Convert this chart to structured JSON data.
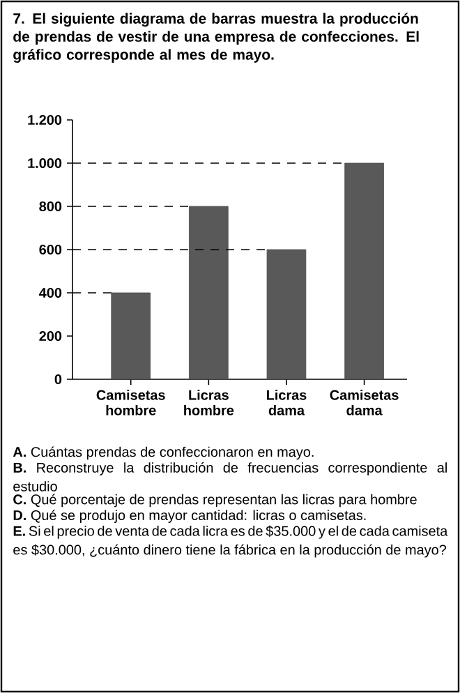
{
  "chart_data": {
    "type": "bar",
    "title": "7. El siguiente diagrama de barras muestra la producción de prendas de vestir de una empresa de confecciones. El gráfico corresponde al mes de mayo.",
    "categories": [
      "Camisetas hombre",
      "Licras hombre",
      "Licras dama",
      "Camisetas dama"
    ],
    "values": [
      400,
      800,
      600,
      1000
    ],
    "color": "#595959",
    "ylim": [
      0,
      1200
    ],
    "yticks": [
      0,
      200,
      400,
      600,
      800,
      {
        "value": 1000,
        "label": "1.000"
      },
      {
        "value": 1200,
        "label": "1.200"
      }
    ],
    "ref_lines": [
      {
        "axis": "y",
        "value": 400,
        "line_style": "dashed"
      },
      {
        "axis": "y",
        "value": 600,
        "line_style": "dashed"
      },
      {
        "axis": "y",
        "value": 800,
        "line_style": "dashed"
      },
      {
        "axis": "y",
        "value": 1000,
        "line_style": "dashed"
      }
    ],
    "annotations": [
      "**A.** Cuántas prendas de confeccionaron en mayo.",
      "**B.** Reconstruye la distribución de frecuencias correspondiente al estudio",
      "**C.** Qué porcentaje de prendas representan las licras para hombre",
      "**D.** Qué se produjo en mayor cantidad: licras o camisetas.",
      "**E.** Si el precio de venta de cada licra es de $35.000 y el de cada camiseta es $30.000, ¿cuánto dinero tiene la fábrica en la producción de mayo?"
    ]
  }
}
